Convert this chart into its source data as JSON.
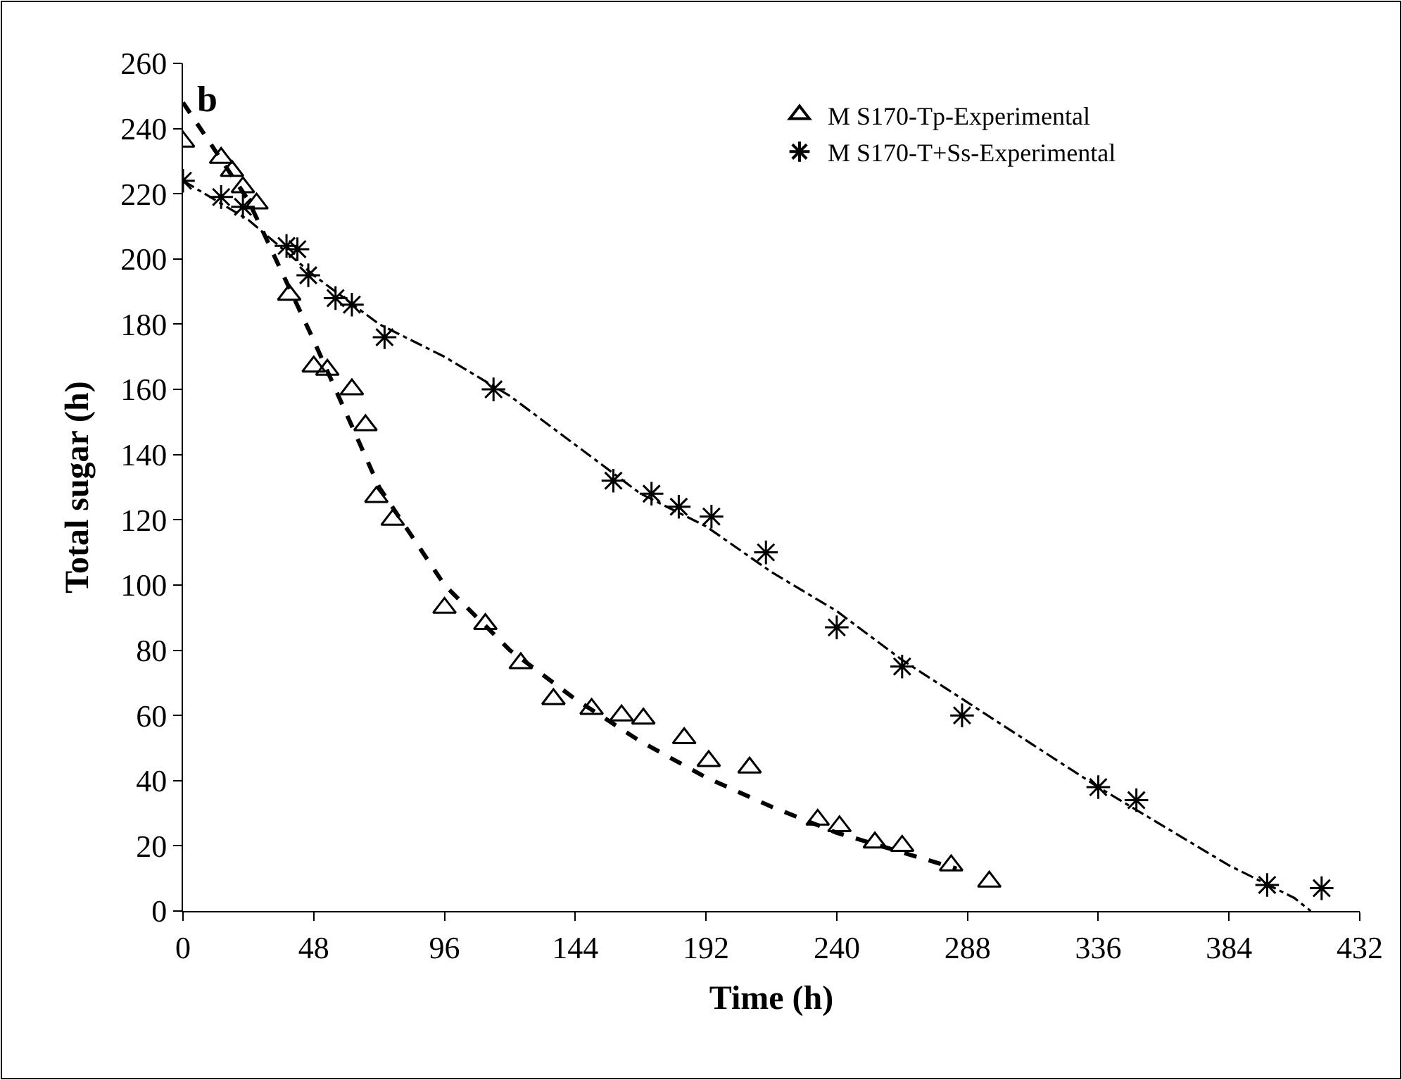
{
  "chart_data": {
    "type": "scatter",
    "xlabel": "Time (h)",
    "ylabel": "Total sugar (h)",
    "xlim": [
      0,
      432
    ],
    "xticks": [
      0,
      48,
      96,
      144,
      192,
      240,
      288,
      336,
      384,
      432
    ],
    "ylim": [
      0,
      260
    ],
    "yticks": [
      0,
      20,
      40,
      60,
      80,
      100,
      120,
      140,
      160,
      180,
      200,
      220,
      240,
      260
    ],
    "legend": "top right",
    "annotations": [
      "b"
    ],
    "series": [
      {
        "name": "M S170-Tp-Experimental",
        "color": "#000000",
        "marker": "triangle",
        "x": [
          0,
          14,
          18,
          22,
          27,
          39,
          48,
          53,
          62,
          67,
          71,
          77,
          96,
          111,
          124,
          136,
          150,
          161,
          169,
          184,
          193,
          208,
          233,
          241,
          254,
          264,
          282,
          296
        ],
        "values": [
          236,
          231,
          227,
          222,
          217,
          189,
          167,
          166,
          160,
          149,
          127,
          120,
          93,
          88,
          76,
          65,
          62,
          60,
          59,
          53,
          46,
          44,
          28,
          26,
          21,
          20,
          14,
          9
        ]
      },
      {
        "name": "M S170-T+Ss-Experimental",
        "color": "#000000",
        "marker": "cross",
        "x": [
          0,
          14,
          22,
          38,
          42,
          46,
          56,
          62,
          74,
          114,
          158,
          172,
          182,
          194,
          214,
          240,
          264,
          286,
          336,
          350,
          398,
          418
        ],
        "values": [
          224,
          219,
          216,
          204,
          203,
          195,
          188,
          186,
          176,
          160,
          132,
          128,
          124,
          121,
          110,
          87,
          75,
          60,
          38,
          34,
          8,
          7
        ]
      },
      {
        "type": "line",
        "color": "#000000",
        "line_style": "dashed",
        "marker": "none",
        "x": [
          0,
          24,
          48,
          72,
          96,
          120,
          144,
          168,
          192,
          216,
          240,
          264,
          284
        ],
        "values": [
          248,
          218,
          175,
          130,
          100,
          80,
          65,
          52,
          41,
          32,
          24,
          18,
          13
        ]
      },
      {
        "type": "line",
        "color": "#000000",
        "line_style": "dashdot",
        "marker": "none",
        "x": [
          0,
          24,
          48,
          72,
          96,
          120,
          144,
          168,
          192,
          216,
          240,
          264,
          288,
          312,
          336,
          360,
          384,
          408,
          414
        ],
        "values": [
          224,
          212,
          195,
          180,
          170,
          158,
          143,
          128,
          118,
          104,
          92,
          77,
          64,
          51,
          38,
          26,
          14,
          4,
          0
        ]
      }
    ]
  }
}
